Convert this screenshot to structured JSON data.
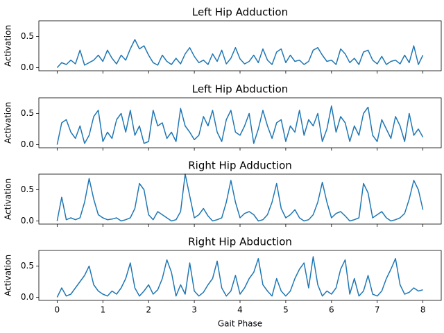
{
  "chart_data": [
    {
      "type": "line",
      "title": "Left Hip Adduction",
      "ylabel": "Activation",
      "x": [
        0,
        0.1,
        0.2,
        0.3,
        0.4,
        0.5,
        0.6,
        0.7,
        0.8,
        0.9,
        1,
        1.1,
        1.2,
        1.3,
        1.4,
        1.5,
        1.6,
        1.7,
        1.8,
        1.9,
        2,
        2.1,
        2.2,
        2.3,
        2.4,
        2.5,
        2.6,
        2.7,
        2.8,
        2.9,
        3,
        3.1,
        3.2,
        3.3,
        3.4,
        3.5,
        3.6,
        3.7,
        3.8,
        3.9,
        4,
        4.1,
        4.2,
        4.3,
        4.4,
        4.5,
        4.6,
        4.7,
        4.8,
        4.9,
        5,
        5.1,
        5.2,
        5.3,
        5.4,
        5.5,
        5.6,
        5.7,
        5.8,
        5.9,
        6,
        6.1,
        6.2,
        6.3,
        6.4,
        6.5,
        6.6,
        6.7,
        6.8,
        6.9,
        7,
        7.1,
        7.2,
        7.3,
        7.4,
        7.5,
        7.6,
        7.7,
        7.8,
        7.9,
        8
      ],
      "series": [
        {
          "color": "#1f77b4",
          "values": [
            0.0,
            0.08,
            0.05,
            0.12,
            0.06,
            0.28,
            0.04,
            0.08,
            0.12,
            0.2,
            0.1,
            0.28,
            0.15,
            0.06,
            0.2,
            0.12,
            0.3,
            0.45,
            0.3,
            0.35,
            0.2,
            0.08,
            0.04,
            0.2,
            0.1,
            0.05,
            0.15,
            0.06,
            0.22,
            0.32,
            0.18,
            0.08,
            0.12,
            0.05,
            0.22,
            0.1,
            0.28,
            0.06,
            0.15,
            0.32,
            0.14,
            0.06,
            0.1,
            0.2,
            0.08,
            0.3,
            0.12,
            0.05,
            0.25,
            0.3,
            0.08,
            0.2,
            0.1,
            0.12,
            0.05,
            0.1,
            0.28,
            0.32,
            0.2,
            0.1,
            0.12,
            0.05,
            0.3,
            0.22,
            0.08,
            0.15,
            0.05,
            0.25,
            0.28,
            0.12,
            0.06,
            0.18,
            0.05,
            0.1,
            0.12,
            0.06,
            0.2,
            0.08,
            0.35,
            0.05,
            0.2
          ]
        }
      ],
      "xlim": [
        -0.4,
        8.4
      ],
      "xticks": [
        0,
        1,
        2,
        3,
        4,
        5,
        6,
        7,
        8
      ],
      "ylim": [
        -0.05,
        0.75
      ],
      "yticks": [
        {
          "value": 0,
          "label": "0.0"
        },
        0.5
      ]
    },
    {
      "type": "line",
      "title": "Left Hip Abduction",
      "ylabel": "Activation",
      "x": [
        0,
        0.1,
        0.2,
        0.3,
        0.4,
        0.5,
        0.6,
        0.7,
        0.8,
        0.9,
        1,
        1.1,
        1.2,
        1.3,
        1.4,
        1.5,
        1.6,
        1.7,
        1.8,
        1.9,
        2,
        2.1,
        2.2,
        2.3,
        2.4,
        2.5,
        2.6,
        2.7,
        2.8,
        2.9,
        3,
        3.1,
        3.2,
        3.3,
        3.4,
        3.5,
        3.6,
        3.7,
        3.8,
        3.9,
        4,
        4.1,
        4.2,
        4.3,
        4.4,
        4.5,
        4.6,
        4.7,
        4.8,
        4.9,
        5,
        5.1,
        5.2,
        5.3,
        5.4,
        5.5,
        5.6,
        5.7,
        5.8,
        5.9,
        6,
        6.1,
        6.2,
        6.3,
        6.4,
        6.5,
        6.6,
        6.7,
        6.8,
        6.9,
        7,
        7.1,
        7.2,
        7.3,
        7.4,
        7.5,
        7.6,
        7.7,
        7.8,
        7.9,
        8
      ],
      "series": [
        {
          "color": "#1f77b4",
          "values": [
            0.0,
            0.35,
            0.4,
            0.2,
            0.1,
            0.3,
            0.02,
            0.15,
            0.45,
            0.55,
            0.05,
            0.2,
            0.1,
            0.4,
            0.5,
            0.2,
            0.55,
            0.15,
            0.3,
            0.02,
            0.05,
            0.55,
            0.3,
            0.35,
            0.1,
            0.2,
            0.05,
            0.58,
            0.3,
            0.2,
            0.08,
            0.15,
            0.45,
            0.3,
            0.55,
            0.2,
            0.05,
            0.4,
            0.55,
            0.2,
            0.15,
            0.3,
            0.5,
            0.02,
            0.25,
            0.55,
            0.3,
            0.1,
            0.35,
            0.4,
            0.05,
            0.3,
            0.2,
            0.55,
            0.15,
            0.4,
            0.3,
            0.5,
            0.05,
            0.25,
            0.62,
            0.2,
            0.45,
            0.35,
            0.05,
            0.3,
            0.15,
            0.5,
            0.6,
            0.15,
            0.05,
            0.4,
            0.25,
            0.1,
            0.45,
            0.3,
            0.05,
            0.5,
            0.15,
            0.25,
            0.12
          ]
        }
      ],
      "xlim": [
        -0.4,
        8.4
      ],
      "xticks": [
        0,
        1,
        2,
        3,
        4,
        5,
        6,
        7,
        8
      ],
      "ylim": [
        -0.05,
        0.75
      ],
      "yticks": [
        {
          "value": 0,
          "label": "0.0"
        },
        0.5
      ]
    },
    {
      "type": "line",
      "title": "Right Hip Adduction",
      "ylabel": "Activation",
      "x": [
        0,
        0.1,
        0.2,
        0.3,
        0.4,
        0.5,
        0.6,
        0.7,
        0.8,
        0.9,
        1,
        1.1,
        1.2,
        1.3,
        1.4,
        1.5,
        1.6,
        1.7,
        1.8,
        1.9,
        2,
        2.1,
        2.2,
        2.3,
        2.4,
        2.5,
        2.6,
        2.7,
        2.8,
        2.9,
        3,
        3.1,
        3.2,
        3.3,
        3.4,
        3.5,
        3.6,
        3.7,
        3.8,
        3.9,
        4,
        4.1,
        4.2,
        4.3,
        4.4,
        4.5,
        4.6,
        4.7,
        4.8,
        4.9,
        5,
        5.1,
        5.2,
        5.3,
        5.4,
        5.5,
        5.6,
        5.7,
        5.8,
        5.9,
        6,
        6.1,
        6.2,
        6.3,
        6.4,
        6.5,
        6.6,
        6.7,
        6.8,
        6.9,
        7,
        7.1,
        7.2,
        7.3,
        7.4,
        7.5,
        7.6,
        7.7,
        7.8,
        7.9,
        8
      ],
      "series": [
        {
          "color": "#1f77b4",
          "values": [
            0.0,
            0.38,
            0.02,
            0.05,
            0.02,
            0.05,
            0.3,
            0.68,
            0.35,
            0.1,
            0.05,
            0.02,
            0.03,
            0.05,
            0.0,
            0.02,
            0.05,
            0.2,
            0.6,
            0.5,
            0.1,
            0.02,
            0.15,
            0.1,
            0.05,
            0.0,
            0.02,
            0.15,
            0.75,
            0.4,
            0.05,
            0.1,
            0.2,
            0.08,
            0.0,
            0.02,
            0.05,
            0.3,
            0.65,
            0.3,
            0.05,
            0.12,
            0.15,
            0.1,
            0.0,
            0.02,
            0.1,
            0.3,
            0.6,
            0.2,
            0.05,
            0.1,
            0.18,
            0.05,
            0.0,
            0.02,
            0.1,
            0.3,
            0.62,
            0.3,
            0.05,
            0.12,
            0.15,
            0.08,
            0.0,
            0.02,
            0.05,
            0.6,
            0.45,
            0.05,
            0.1,
            0.15,
            0.05,
            0.0,
            0.02,
            0.05,
            0.12,
            0.35,
            0.65,
            0.5,
            0.18
          ]
        }
      ],
      "xlim": [
        -0.4,
        8.4
      ],
      "xticks": [
        0,
        1,
        2,
        3,
        4,
        5,
        6,
        7,
        8
      ],
      "ylim": [
        -0.05,
        0.75
      ],
      "yticks": [
        {
          "value": 0,
          "label": "0.0"
        },
        0.5
      ]
    },
    {
      "type": "line",
      "title": "Right Hip Abduction",
      "ylabel": "Activation",
      "xlabel": "Gait Phase",
      "x": [
        0,
        0.1,
        0.2,
        0.3,
        0.4,
        0.5,
        0.6,
        0.7,
        0.8,
        0.9,
        1,
        1.1,
        1.2,
        1.3,
        1.4,
        1.5,
        1.6,
        1.7,
        1.8,
        1.9,
        2,
        2.1,
        2.2,
        2.3,
        2.4,
        2.5,
        2.6,
        2.7,
        2.8,
        2.9,
        3,
        3.1,
        3.2,
        3.3,
        3.4,
        3.5,
        3.6,
        3.7,
        3.8,
        3.9,
        4,
        4.1,
        4.2,
        4.3,
        4.4,
        4.5,
        4.6,
        4.7,
        4.8,
        4.9,
        5,
        5.1,
        5.2,
        5.3,
        5.4,
        5.5,
        5.6,
        5.7,
        5.8,
        5.9,
        6,
        6.1,
        6.2,
        6.3,
        6.4,
        6.5,
        6.6,
        6.7,
        6.8,
        6.9,
        7,
        7.1,
        7.2,
        7.3,
        7.4,
        7.5,
        7.6,
        7.7,
        7.8,
        7.9,
        8
      ],
      "series": [
        {
          "color": "#1f77b4",
          "values": [
            0.0,
            0.15,
            0.02,
            0.05,
            0.15,
            0.25,
            0.35,
            0.5,
            0.2,
            0.1,
            0.05,
            0.02,
            0.1,
            0.05,
            0.15,
            0.3,
            0.55,
            0.15,
            0.02,
            0.1,
            0.2,
            0.05,
            0.12,
            0.3,
            0.6,
            0.4,
            0.02,
            0.2,
            0.05,
            0.55,
            0.1,
            0.02,
            0.08,
            0.2,
            0.3,
            0.58,
            0.15,
            0.02,
            0.1,
            0.35,
            0.05,
            0.15,
            0.3,
            0.4,
            0.62,
            0.2,
            0.1,
            0.02,
            0.3,
            0.1,
            0.02,
            0.1,
            0.3,
            0.45,
            0.55,
            0.15,
            0.65,
            0.2,
            0.02,
            0.1,
            0.05,
            0.15,
            0.45,
            0.6,
            0.05,
            0.3,
            0.02,
            0.1,
            0.35,
            0.05,
            0.02,
            0.1,
            0.3,
            0.45,
            0.62,
            0.2,
            0.05,
            0.08,
            0.15,
            0.1,
            0.12
          ]
        }
      ],
      "xlim": [
        -0.4,
        8.4
      ],
      "xticks": [
        0,
        1,
        2,
        3,
        4,
        5,
        6,
        7,
        8
      ],
      "show_xtick_labels": true,
      "ylim": [
        -0.05,
        0.75
      ],
      "yticks": [
        {
          "value": 0,
          "label": "0.0"
        },
        0.5
      ]
    }
  ]
}
